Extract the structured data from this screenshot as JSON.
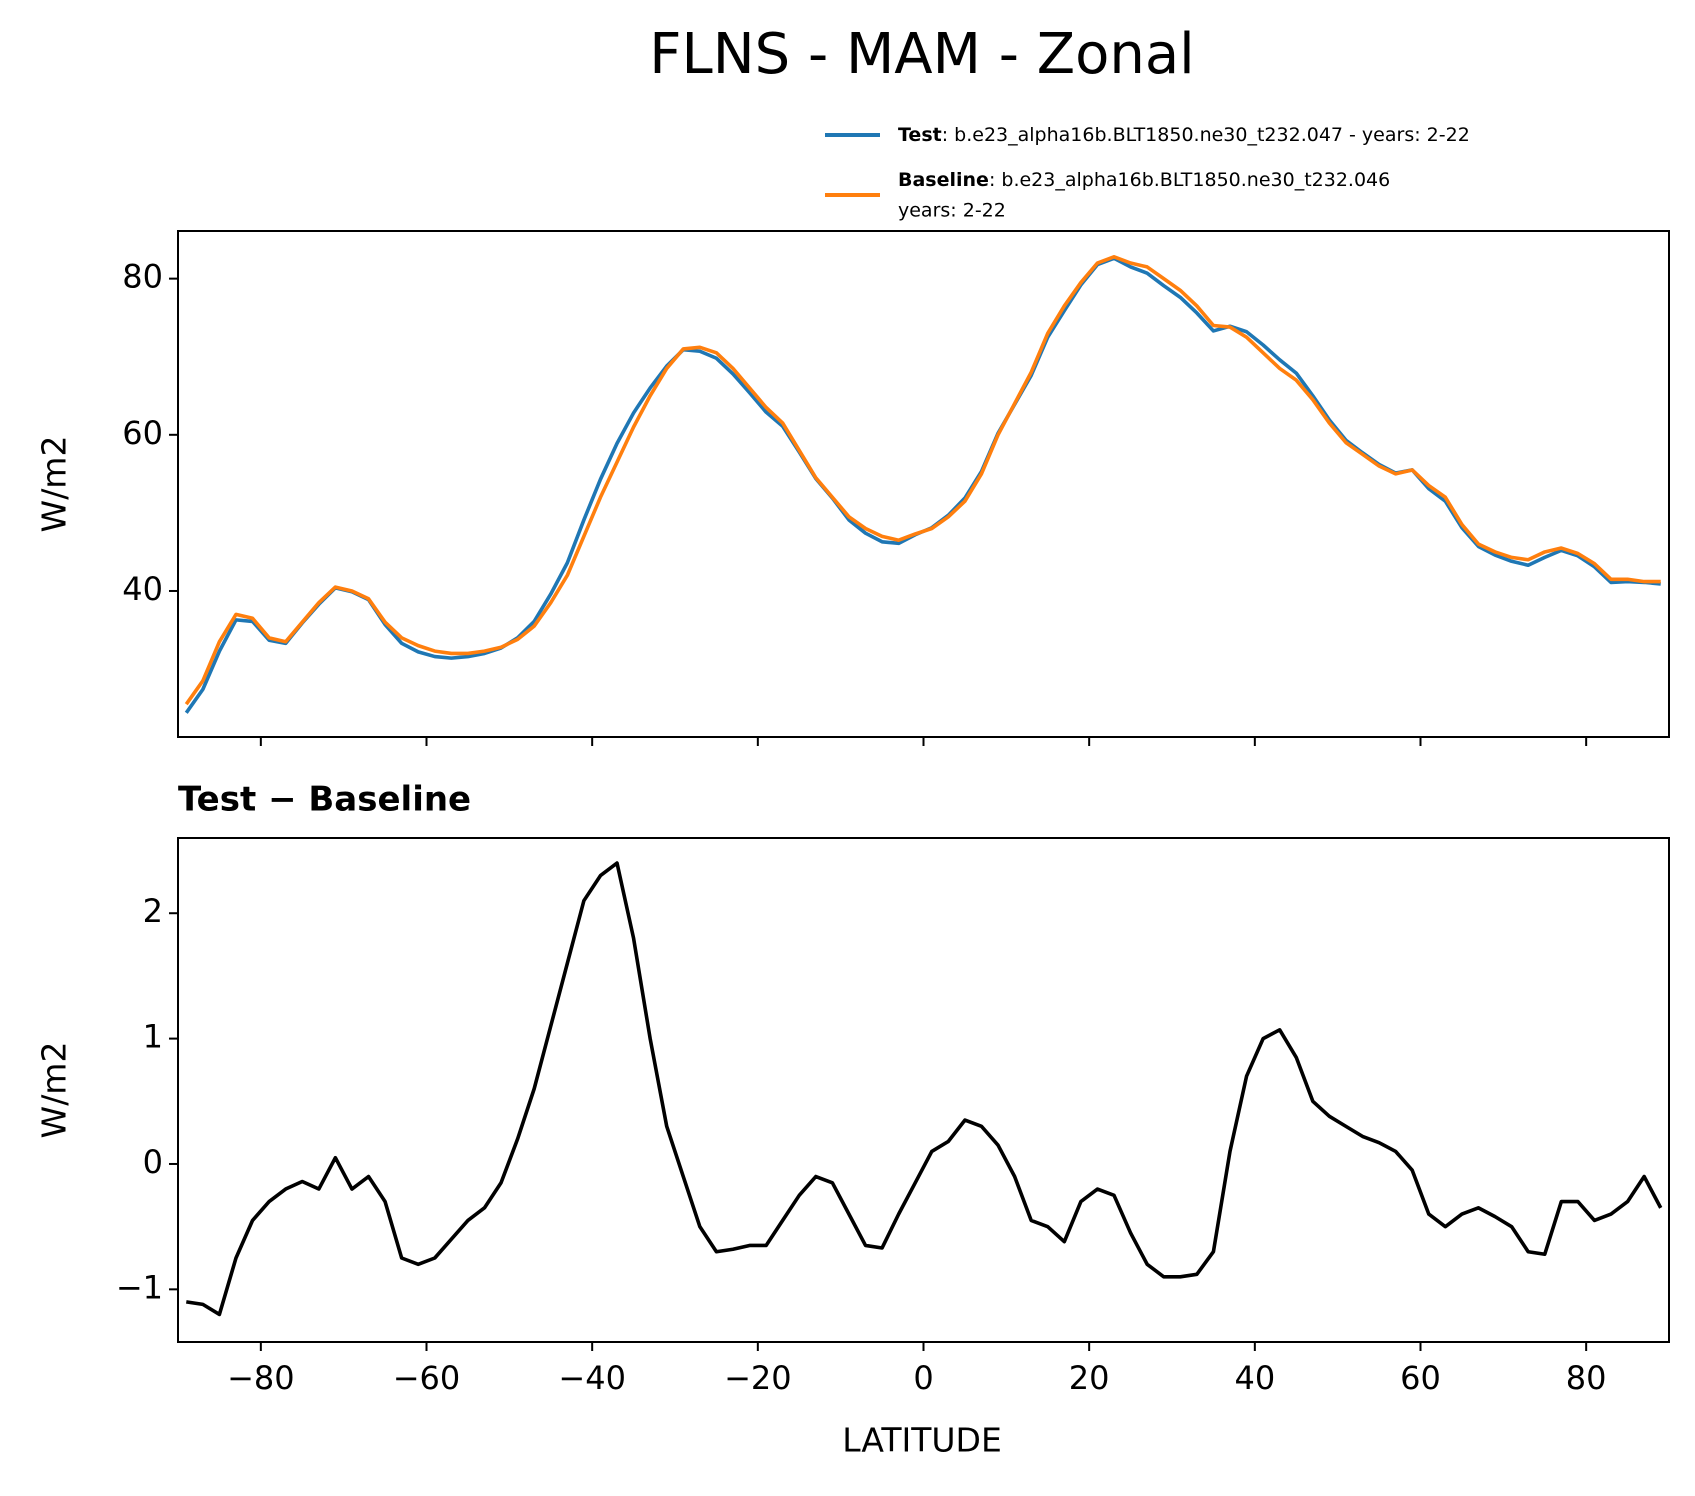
{
  "chart_data": [
    {
      "type": "line",
      "title": "FLNS - MAM - Zonal",
      "ylabel": "W/m2",
      "x": [
        -89,
        -87,
        -85,
        -83,
        -81,
        -79,
        -77,
        -75,
        -73,
        -71,
        -69,
        -67,
        -65,
        -63,
        -61,
        -59,
        -57,
        -55,
        -53,
        -51,
        -49,
        -47,
        -45,
        -43,
        -41,
        -39,
        -37,
        -35,
        -33,
        -31,
        -29,
        -27,
        -25,
        -23,
        -21,
        -19,
        -17,
        -15,
        -13,
        -11,
        -9,
        -7,
        -5,
        -3,
        -1,
        1,
        3,
        5,
        7,
        9,
        11,
        13,
        15,
        17,
        19,
        21,
        23,
        25,
        27,
        29,
        31,
        33,
        35,
        37,
        39,
        41,
        43,
        45,
        47,
        49,
        51,
        53,
        55,
        57,
        59,
        61,
        63,
        65,
        67,
        69,
        71,
        73,
        75,
        77,
        79,
        81,
        83,
        85,
        87,
        89
      ],
      "series": [
        {
          "name": "Test",
          "details": [
            ": b.e23_alpha16b.BLT1850.ne30_t232.047 - years: 2-22"
          ],
          "color": "#1f77b4",
          "values": [
            24.4,
            27.4,
            32.3,
            36.3,
            36.1,
            33.7,
            33.3,
            35.9,
            38.3,
            40.4,
            39.9,
            38.9,
            35.7,
            33.3,
            32.2,
            31.6,
            31.4,
            31.6,
            32.0,
            32.7,
            34.0,
            36.1,
            39.6,
            43.6,
            49.1,
            54.3,
            58.9,
            62.8,
            66.0,
            68.8,
            70.9,
            70.7,
            69.8,
            67.8,
            65.4,
            62.9,
            61.1,
            57.8,
            54.4,
            51.9,
            49.1,
            47.4,
            46.3,
            46.1,
            47.2,
            48.1,
            49.7,
            51.9,
            55.3,
            60.2,
            63.9,
            67.6,
            72.5,
            75.9,
            79.2,
            81.8,
            82.6,
            81.5,
            80.7,
            79.1,
            77.6,
            75.6,
            73.3,
            73.9,
            73.2,
            71.5,
            69.6,
            67.9,
            65.0,
            61.9,
            59.3,
            57.7,
            56.2,
            55.1,
            55.5,
            53.1,
            51.5,
            48.1,
            45.7,
            44.6,
            43.8,
            43.3,
            44.3,
            45.2,
            44.5,
            43.1,
            41.1,
            41.2,
            41.1,
            40.9
          ]
        },
        {
          "name": "Baseline",
          "details": [
            ": b.e23_alpha16b.BLT1850.ne30_t232.046",
            "years: 2-22"
          ],
          "color": "#ff7f0e",
          "values": [
            25.5,
            28.5,
            33.5,
            37,
            36.5,
            34,
            33.5,
            36,
            38.5,
            40.5,
            40,
            39,
            36,
            34,
            33,
            32.3,
            32,
            32,
            32.3,
            32.8,
            33.8,
            35.5,
            38.5,
            42,
            47,
            52,
            56.5,
            61,
            65,
            68.5,
            71,
            71.2,
            70.5,
            68.5,
            66,
            63.5,
            61.5,
            58,
            54.5,
            52,
            49.5,
            48,
            47,
            46.5,
            47.3,
            48,
            49.5,
            51.5,
            55,
            60,
            64,
            68,
            73,
            76.5,
            79.5,
            82,
            82.8,
            82,
            81.5,
            80,
            78.5,
            76.5,
            74,
            73.8,
            72.5,
            70.5,
            68.5,
            67,
            64.5,
            61.5,
            59,
            57.5,
            56,
            55,
            55.5,
            53.5,
            52,
            48.5,
            46,
            45,
            44.3,
            44,
            45,
            45.5,
            44.8,
            43.5,
            41.5,
            41.5,
            41.2,
            41.2
          ]
        }
      ],
      "xlim": [
        -90,
        90
      ],
      "ylim": [
        21.3,
        86.1
      ],
      "yticks": [
        40,
        60,
        80
      ]
    },
    {
      "type": "line",
      "title": "Test − Baseline",
      "ylabel": "W/m2",
      "xlabel": "LATITUDE",
      "color": "#000000",
      "x": [
        -89,
        -87,
        -85,
        -83,
        -81,
        -79,
        -77,
        -75,
        -73,
        -71,
        -69,
        -67,
        -65,
        -63,
        -61,
        -59,
        -57,
        -55,
        -53,
        -51,
        -49,
        -47,
        -45,
        -43,
        -41,
        -39,
        -37,
        -35,
        -33,
        -31,
        -29,
        -27,
        -25,
        -23,
        -21,
        -19,
        -17,
        -15,
        -13,
        -11,
        -9,
        -7,
        -5,
        -3,
        -1,
        1,
        3,
        5,
        7,
        9,
        11,
        13,
        15,
        17,
        19,
        21,
        23,
        25,
        27,
        29,
        31,
        33,
        35,
        37,
        39,
        41,
        43,
        45,
        47,
        49,
        51,
        53,
        55,
        57,
        59,
        61,
        63,
        65,
        67,
        69,
        71,
        73,
        75,
        77,
        79,
        81,
        83,
        85,
        87,
        89
      ],
      "values": [
        -1.1,
        -1.12,
        -1.2,
        -0.75,
        -0.45,
        -0.3,
        -0.2,
        -0.14,
        -0.2,
        0.05,
        -0.2,
        -0.1,
        -0.3,
        -0.75,
        -0.8,
        -0.75,
        -0.6,
        -0.45,
        -0.35,
        -0.15,
        0.2,
        0.6,
        1.1,
        1.6,
        2.1,
        2.3,
        2.4,
        1.8,
        1.0,
        0.3,
        -0.1,
        -0.5,
        -0.7,
        -0.68,
        -0.65,
        -0.65,
        -0.45,
        -0.25,
        -0.1,
        -0.15,
        -0.4,
        -0.65,
        -0.67,
        -0.4,
        -0.15,
        0.1,
        0.18,
        0.35,
        0.3,
        0.15,
        -0.1,
        -0.45,
        -0.5,
        -0.62,
        -0.3,
        -0.2,
        -0.25,
        -0.55,
        -0.8,
        -0.9,
        -0.9,
        -0.88,
        -0.7,
        0.1,
        0.7,
        1.0,
        1.07,
        0.85,
        0.5,
        0.38,
        0.3,
        0.22,
        0.17,
        0.1,
        -0.05,
        -0.4,
        -0.5,
        -0.4,
        -0.35,
        -0.42,
        -0.5,
        -0.7,
        -0.72,
        -0.3,
        -0.3,
        -0.45,
        -0.4,
        -0.3,
        -0.1,
        -0.35
      ],
      "xlim": [
        -90,
        90
      ],
      "ylim": [
        -1.42,
        2.6
      ],
      "xticks": [
        {
          "value": -80,
          "label": "−80"
        },
        {
          "value": -60,
          "label": "−60"
        },
        {
          "value": -40,
          "label": "−40"
        },
        {
          "value": -20,
          "label": "−20"
        },
        0,
        20,
        40,
        60,
        80
      ],
      "yticks": [
        {
          "value": -1,
          "label": "−1"
        },
        0,
        1,
        2
      ]
    }
  ]
}
